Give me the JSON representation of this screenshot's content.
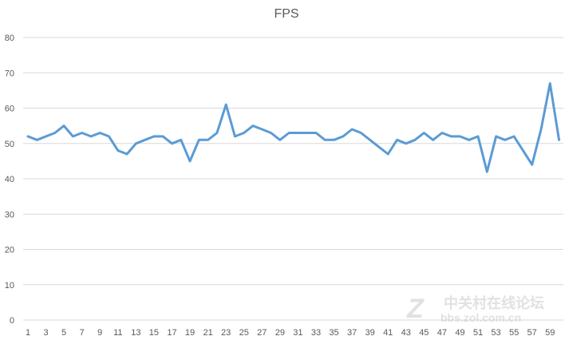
{
  "chart_data": {
    "type": "line",
    "title": "FPS",
    "xlabel": "",
    "ylabel": "",
    "ylim": [
      0,
      80
    ],
    "yticks": [
      0,
      10,
      20,
      30,
      40,
      50,
      60,
      70,
      80
    ],
    "xtick_labels": [
      "1",
      "3",
      "5",
      "7",
      "9",
      "11",
      "13",
      "15",
      "17",
      "19",
      "21",
      "23",
      "25",
      "27",
      "29",
      "31",
      "33",
      "35",
      "37",
      "39",
      "41",
      "43",
      "45",
      "47",
      "49",
      "51",
      "53",
      "55",
      "57",
      "59"
    ],
    "grid": "horizontal",
    "legend": "none",
    "x": [
      1,
      2,
      3,
      4,
      5,
      6,
      7,
      8,
      9,
      10,
      11,
      12,
      13,
      14,
      15,
      16,
      17,
      18,
      19,
      20,
      21,
      22,
      23,
      24,
      25,
      26,
      27,
      28,
      29,
      30,
      31,
      32,
      33,
      34,
      35,
      36,
      37,
      38,
      39,
      40,
      41,
      42,
      43,
      44,
      45,
      46,
      47,
      48,
      49,
      50,
      51,
      52,
      53,
      54,
      55,
      56,
      57,
      58,
      59,
      60
    ],
    "series": [
      {
        "name": "FPS",
        "color": "#5B9BD5",
        "values": [
          52,
          51,
          52,
          53,
          55,
          52,
          53,
          52,
          53,
          52,
          48,
          47,
          50,
          51,
          52,
          52,
          50,
          51,
          45,
          51,
          51,
          53,
          61,
          52,
          53,
          55,
          54,
          53,
          51,
          53,
          53,
          53,
          53,
          51,
          51,
          52,
          54,
          53,
          51,
          49,
          47,
          51,
          50,
          51,
          53,
          51,
          53,
          52,
          52,
          51,
          52,
          42,
          52,
          51,
          52,
          48,
          44,
          54,
          67,
          51
        ]
      }
    ]
  },
  "watermark": {
    "text_cn": "中关村在线论坛",
    "text_url": "bbs.zol.com.cn",
    "logo": "Z"
  }
}
